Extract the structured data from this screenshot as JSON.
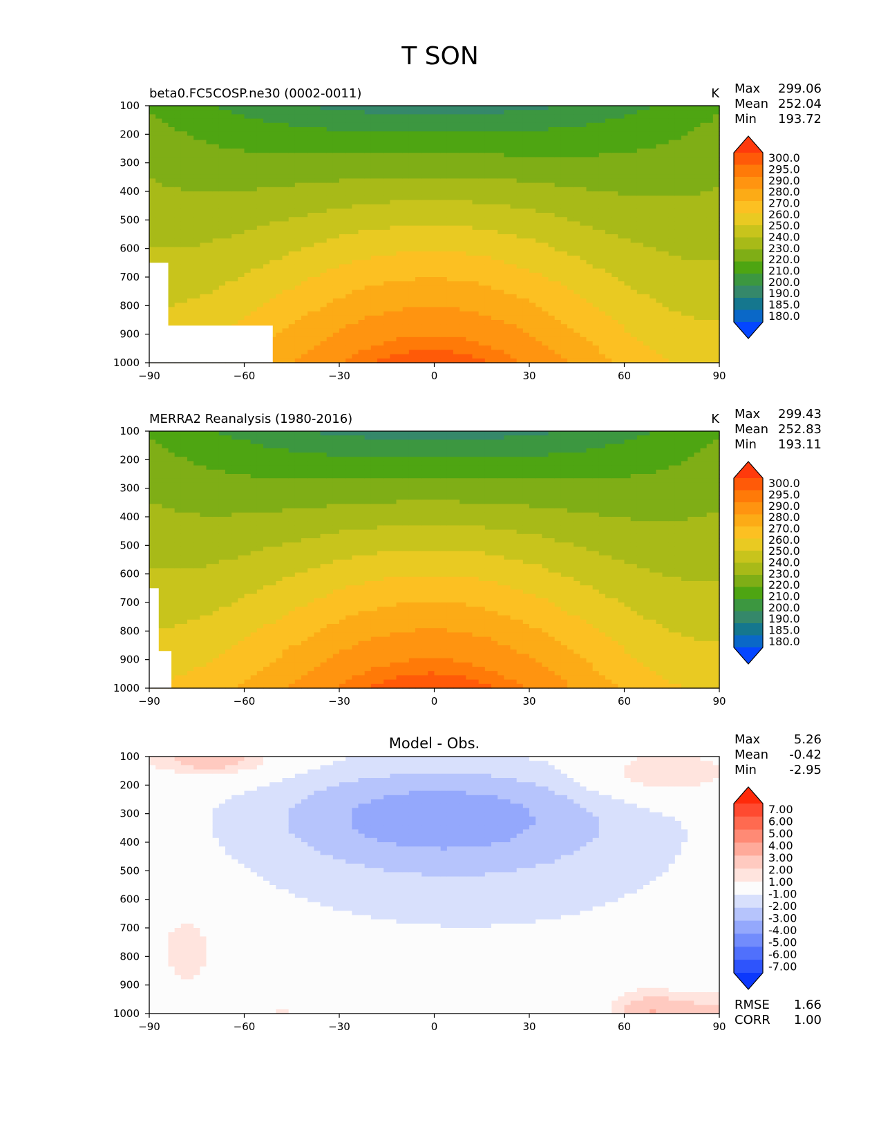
{
  "title": "T SON",
  "chart_data": [
    {
      "type": "heatmap",
      "title": "beta0.FC5COSP.ne30 (0002-0011)",
      "units": "K",
      "stats": {
        "max_label": "Max",
        "max": "299.06",
        "mean_label": "Mean",
        "mean": "252.04",
        "min_label": "Min",
        "min": "193.72"
      },
      "x_ticks": [
        "−90",
        "−60",
        "−30",
        "0",
        "30",
        "60",
        "90"
      ],
      "y_ticks": [
        "100",
        "200",
        "300",
        "400",
        "500",
        "600",
        "700",
        "800",
        "900",
        "1000"
      ],
      "xlim": [
        -90,
        90
      ],
      "ylim": [
        1000,
        100
      ],
      "colorbar_levels": [
        "300.0",
        "295.0",
        "290.0",
        "280.0",
        "270.0",
        "260.0",
        "250.0",
        "240.0",
        "230.0",
        "220.0",
        "210.0",
        "200.0",
        "190.0",
        "185.0",
        "180.0"
      ],
      "colorbar_colors": [
        "#ff3a0c",
        "#ff5a08",
        "#ff7a08",
        "#ff9410",
        "#fcab16",
        "#fcc022",
        "#e9ca22",
        "#c8c41c",
        "#a8ba18",
        "#7fae16",
        "#4ea512",
        "#3c9740",
        "#35886a",
        "#15778e",
        "#0a68c8",
        "#0446ff"
      ],
      "field": {
        "type": "zonal_temperature",
        "surface_temp": 299,
        "top_temp": 200,
        "polar_drop": 40,
        "asym": 0.25
      },
      "masked_regions": [
        {
          "lon": [
            -90,
            -84
          ],
          "p": [
            650,
            1000
          ]
        },
        {
          "lon": [
            -90,
            -51
          ],
          "p": [
            870,
            1000
          ]
        }
      ]
    },
    {
      "type": "heatmap",
      "title": "MERRA2 Reanalysis (1980-2016)",
      "units": "K",
      "stats": {
        "max_label": "Max",
        "max": "299.43",
        "mean_label": "Mean",
        "mean": "252.83",
        "min_label": "Min",
        "min": "193.11"
      },
      "x_ticks": [
        "−90",
        "−60",
        "−30",
        "0",
        "30",
        "60",
        "90"
      ],
      "y_ticks": [
        "100",
        "200",
        "300",
        "400",
        "500",
        "600",
        "700",
        "800",
        "900",
        "1000"
      ],
      "xlim": [
        -90,
        90
      ],
      "ylim": [
        1000,
        100
      ],
      "colorbar_levels": [
        "300.0",
        "295.0",
        "290.0",
        "280.0",
        "270.0",
        "260.0",
        "250.0",
        "240.0",
        "230.0",
        "220.0",
        "210.0",
        "200.0",
        "190.0",
        "185.0",
        "180.0"
      ],
      "colorbar_colors": [
        "#ff3a0c",
        "#ff5a08",
        "#ff7a08",
        "#ff9410",
        "#fcab16",
        "#fcc022",
        "#e9ca22",
        "#c8c41c",
        "#a8ba18",
        "#7fae16",
        "#4ea512",
        "#3c9740",
        "#35886a",
        "#15778e",
        "#0a68c8",
        "#0446ff"
      ],
      "field": {
        "type": "zonal_temperature",
        "surface_temp": 300,
        "top_temp": 200,
        "polar_drop": 40,
        "asym": 0.25
      },
      "masked_regions": [
        {
          "lon": [
            -90,
            -87
          ],
          "p": [
            650,
            1000
          ]
        },
        {
          "lon": [
            -90,
            -83
          ],
          "p": [
            870,
            1000
          ]
        }
      ]
    },
    {
      "type": "heatmap",
      "title": "Model - Obs.",
      "units": "",
      "stats": {
        "max_label": "Max",
        "max": "5.26",
        "mean_label": "Mean",
        "mean": "-0.42",
        "min_label": "Min",
        "min": "-2.95"
      },
      "extra_stats": {
        "rmse_label": "RMSE",
        "rmse": "1.66",
        "corr_label": "CORR",
        "corr": "1.00"
      },
      "x_ticks": [
        "−90",
        "−60",
        "−30",
        "0",
        "30",
        "60",
        "90"
      ],
      "y_ticks": [
        "100",
        "200",
        "300",
        "400",
        "500",
        "600",
        "700",
        "800",
        "900",
        "1000"
      ],
      "xlim": [
        -90,
        90
      ],
      "ylim": [
        1000,
        100
      ],
      "colorbar_levels": [
        "7.00",
        "6.00",
        "5.00",
        "4.00",
        "3.00",
        "2.00",
        "1.00",
        "-1.00",
        "-2.00",
        "-3.00",
        "-4.00",
        "-5.00",
        "-6.00",
        "-7.00"
      ],
      "colorbar_colors": [
        "#ff2a0a",
        "#ff4a30",
        "#ff6a50",
        "#ff8a75",
        "#ffaa9a",
        "#ffcac0",
        "#ffe4de",
        "#fcfcfc",
        "#d8e0fc",
        "#b6c4fc",
        "#94a8fc",
        "#728cfc",
        "#5070fc",
        "#2e54fc",
        "#0c38fc"
      ],
      "field": {
        "type": "difference"
      },
      "masked_regions": []
    }
  ]
}
